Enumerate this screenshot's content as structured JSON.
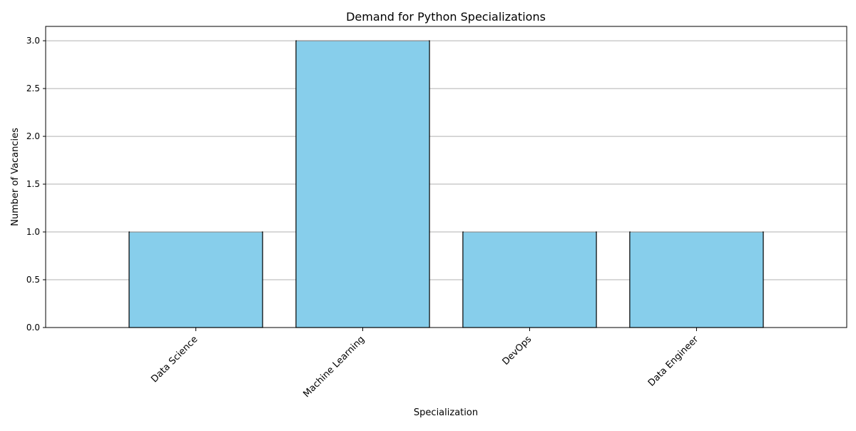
{
  "chart_data": {
    "type": "bar",
    "title": "Demand for Python Specializations",
    "xlabel": "Specialization",
    "ylabel": "Number of Vacancies",
    "categories": [
      "Data Science",
      "Machine Learning",
      "DevOps",
      "Data Engineer"
    ],
    "values": [
      1,
      3,
      1,
      1
    ],
    "ylim": [
      0,
      3.15
    ],
    "yticks": [
      "0.0",
      "0.5",
      "1.0",
      "1.5",
      "2.0",
      "2.5",
      "3.0"
    ],
    "grid": "y-axis only",
    "legend": "none",
    "bar_color": "#87CEEB",
    "bar_edge_color": "#000000",
    "grid_color": "#b0b0b0"
  }
}
